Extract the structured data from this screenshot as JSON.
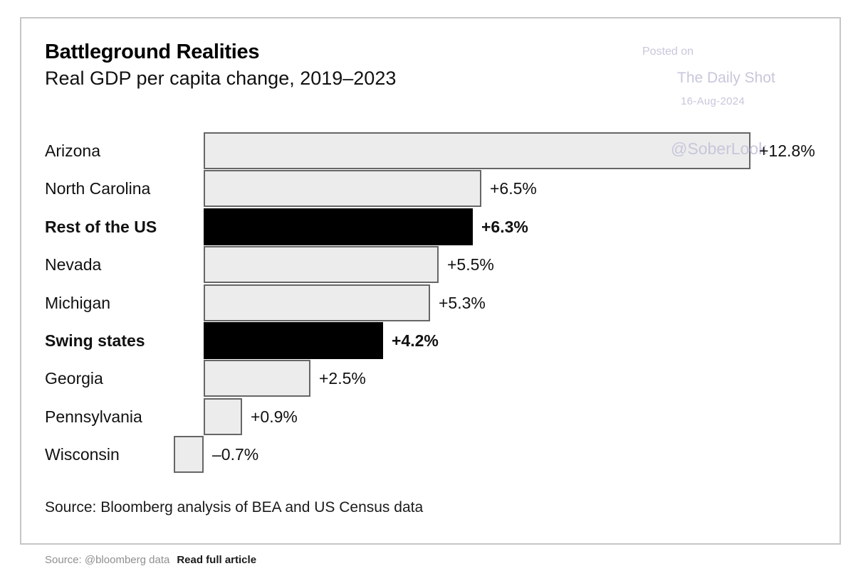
{
  "header": {
    "title": "Battleground Realities",
    "subtitle": "Real GDP per capita change, 2019–2023"
  },
  "watermark": {
    "posted_on": "Posted on",
    "site_name": "The Daily Shot",
    "date": "16-Aug-2024",
    "handle": "@SoberLook"
  },
  "chart_data": {
    "type": "bar",
    "orientation": "horizontal",
    "title": "Battleground Realities",
    "subtitle": "Real GDP per capita change, 2019–2023",
    "unit": "%",
    "categories": [
      "Arizona",
      "North Carolina",
      "Rest of the US",
      "Nevada",
      "Michigan",
      "Swing states",
      "Georgia",
      "Pennsylvania",
      "Wisconsin"
    ],
    "values": [
      12.8,
      6.5,
      6.3,
      5.5,
      5.3,
      4.2,
      2.5,
      0.9,
      -0.7
    ],
    "value_labels": [
      "+12.8%",
      "+6.5%",
      "+6.3%",
      "+5.5%",
      "+5.3%",
      "+4.2%",
      "+2.5%",
      "+0.9%",
      "–0.7%"
    ],
    "emphasized": [
      false,
      false,
      true,
      false,
      false,
      true,
      false,
      false,
      false
    ],
    "xlim": [
      -0.7,
      12.8
    ],
    "grid": false,
    "legend": false,
    "colors": {
      "bar_default": "#ececec",
      "bar_emphasis": "#000000",
      "bar_border": "#666666",
      "text": "#1a1a1a",
      "watermark": "#c7c7db"
    },
    "source": "Source: Bloomberg analysis of BEA and US Census data"
  },
  "footer": {
    "source_text": "Source: @bloomberg data",
    "link_text": "Read full article"
  }
}
